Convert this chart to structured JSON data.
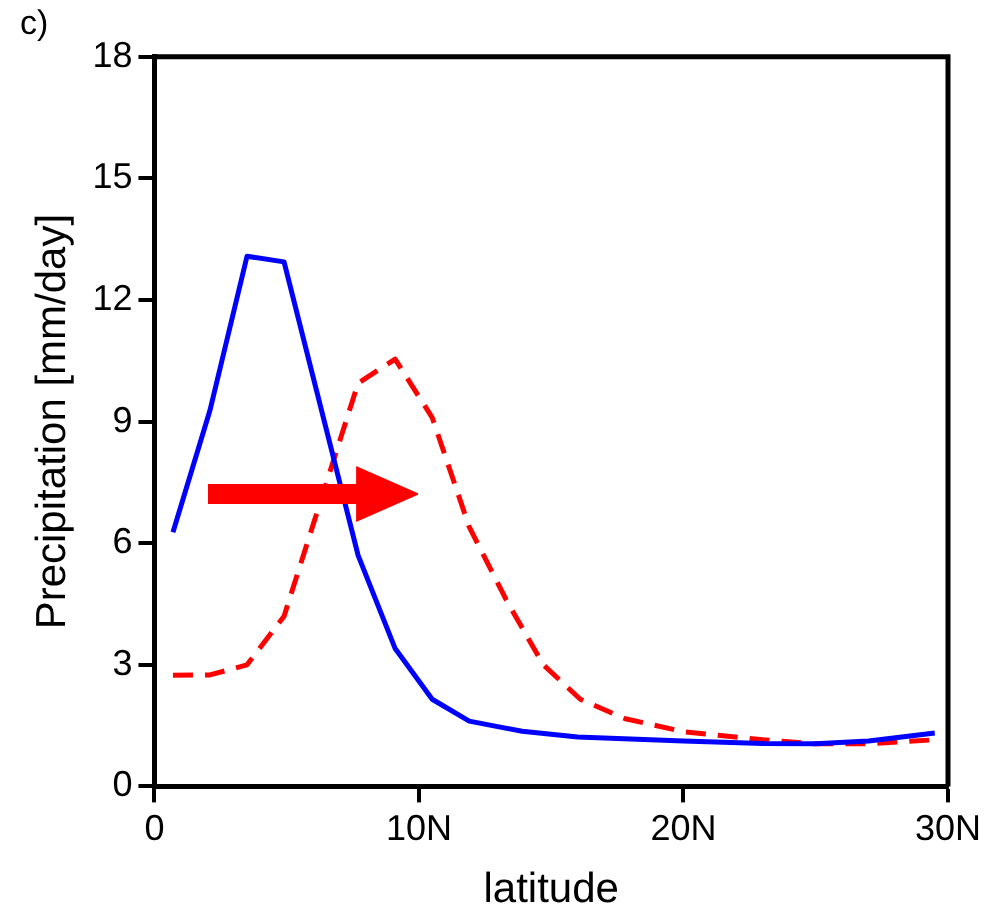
{
  "chart_data": {
    "type": "line",
    "title": "c)",
    "xlabel": "latitude",
    "ylabel": "Precipitation [mm/day]",
    "xlim": [
      0,
      30
    ],
    "xticks": [
      0,
      {
        "value": 10,
        "label": "10N"
      },
      {
        "value": 20,
        "label": "20N"
      },
      {
        "value": 30,
        "label": "30N"
      }
    ],
    "ylim": [
      0,
      18
    ],
    "yticks": [
      0,
      3,
      6,
      9,
      12,
      15,
      18
    ],
    "grid": false,
    "legend": false,
    "series": [
      {
        "color": "#0000ff",
        "line_style": "solid",
        "x": [
          0.7,
          2.1,
          3.5,
          4.9,
          7.7,
          9.1,
          10.5,
          11.9,
          13.9,
          16,
          20,
          23,
          25,
          27,
          29.5
        ],
        "values": [
          6.27,
          9.28,
          13.08,
          12.94,
          5.7,
          3.4,
          2.15,
          1.61,
          1.36,
          1.22,
          1.12,
          1.06,
          1.05,
          1.12,
          1.32
        ]
      },
      {
        "color": "#ff0000",
        "line_style": "dashed",
        "x": [
          0.7,
          2.1,
          3.5,
          4.9,
          7.7,
          9.1,
          10.5,
          11.9,
          13.3,
          14.7,
          16.1,
          17.8,
          20,
          23,
          25,
          27,
          29.5
        ],
        "values": [
          2.74,
          2.75,
          3.0,
          4.2,
          9.95,
          10.54,
          9.1,
          6.4,
          4.6,
          3.0,
          2.15,
          1.67,
          1.35,
          1.15,
          1.05,
          1.05,
          1.15
        ]
      }
    ]
  }
}
